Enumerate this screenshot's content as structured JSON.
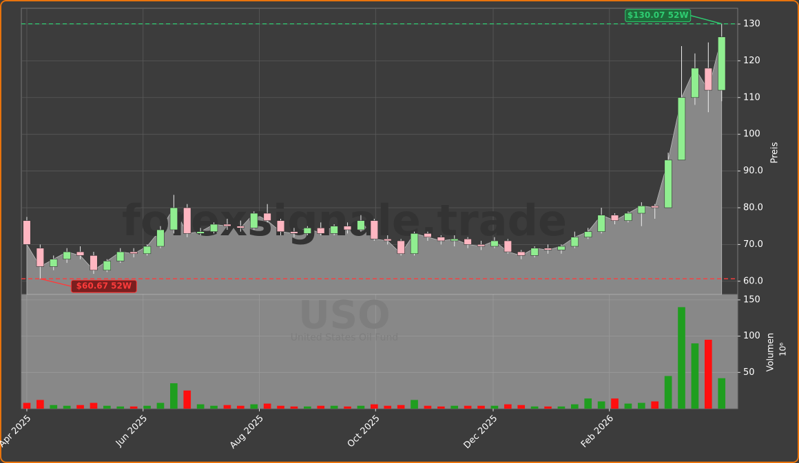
{
  "chart_data": {
    "type": "candlestick",
    "watermark": "forexsignale.trade",
    "symbol": "USO",
    "name": "United States Oil Fund",
    "ylabel": "Preis",
    "up_color": "#90ee90",
    "down_color": "#ffb6c1",
    "area_color": "#888888",
    "grid": true,
    "xlim": [
      -0.41,
      53.2
    ],
    "xticks": [
      {
        "value": 0,
        "label": "Apr 2025"
      },
      {
        "value": 8.7,
        "label": "Jun 2025"
      },
      {
        "value": 17.4,
        "label": "Aug 2025"
      },
      {
        "value": 26.1,
        "label": "Oct 2025"
      },
      {
        "value": 34.9,
        "label": "Dec 2025"
      },
      {
        "value": 43.6,
        "label": "Feb 2026"
      }
    ],
    "ylim": [
      56.4,
      134.3
    ],
    "yticks": [
      {
        "value": 60,
        "label": "60.0"
      },
      {
        "value": 70,
        "label": "70.0"
      },
      {
        "value": 80,
        "label": "80.0"
      },
      {
        "value": 90,
        "label": "90.0"
      },
      100,
      110,
      120,
      130
    ],
    "open": [
      76.5,
      69,
      64,
      66,
      68,
      67,
      63,
      65.5,
      68,
      67.5,
      69.5,
      74,
      80,
      73,
      73.5,
      75.5,
      75,
      74.5,
      78.5,
      76.5,
      73.5,
      73,
      74.5,
      73,
      75,
      74,
      76.5,
      71.5,
      71,
      67.5,
      73,
      72,
      71,
      71.5,
      70,
      69.5,
      71,
      68,
      67,
      69,
      68.5,
      69.5,
      72,
      73.5,
      78,
      76.5,
      78.5,
      80.5,
      80,
      93,
      110,
      118,
      112
    ],
    "high": [
      77.5,
      70,
      67,
      69,
      69.5,
      68,
      66,
      69,
      69,
      70,
      75,
      83.5,
      81,
      74.5,
      76,
      77,
      76.5,
      79,
      81,
      77,
      74.5,
      75,
      76,
      75.5,
      76,
      78,
      77,
      72.5,
      71.5,
      73.5,
      73.5,
      72.5,
      72.5,
      72,
      71,
      72,
      71.5,
      68.5,
      69.5,
      70,
      70,
      73.5,
      74.5,
      80,
      78.5,
      79,
      81.5,
      81,
      95,
      124,
      122,
      125,
      130.07
    ],
    "low": [
      70,
      60.67,
      63,
      65,
      66,
      62,
      62.5,
      65,
      66.5,
      67,
      69,
      73,
      72,
      72.5,
      73,
      74,
      73.5,
      74,
      76,
      72.5,
      72,
      72.5,
      72.5,
      72.5,
      73,
      73.5,
      71,
      70,
      67,
      67,
      71,
      70,
      69.5,
      69,
      68.5,
      69,
      67.5,
      66,
      66.5,
      67.5,
      67.5,
      69,
      71.5,
      73,
      75.5,
      76,
      75,
      77,
      80,
      93,
      108,
      106,
      109
    ],
    "close": [
      70,
      64,
      66,
      68,
      67,
      63,
      65.5,
      68,
      67.5,
      69.5,
      74,
      80,
      73,
      73.5,
      75.5,
      75,
      74.5,
      78.5,
      76.5,
      73.5,
      73,
      74.5,
      73,
      75,
      74,
      76.5,
      71.5,
      71,
      67.5,
      73,
      72,
      71,
      71.5,
      70,
      69.5,
      71,
      68,
      67,
      69,
      68.5,
      69.5,
      72,
      73.5,
      78,
      76.5,
      78.5,
      80.5,
      80,
      93,
      110,
      118,
      112,
      126.5
    ],
    "high_52w": {
      "value": 130.07,
      "label": "$130.07 52W",
      "color": "#2ecc71",
      "fill": "#1e6b3a"
    },
    "low_52w": {
      "value": 60.67,
      "label": "$60.67 52W",
      "color": "#ff3b3b",
      "fill": "#7a1f1f"
    },
    "volume": {
      "label": "Volumen",
      "unit": "10⁶",
      "up_color": "#1f9e1f",
      "down_color": "#ff0f0f",
      "ylim": [
        0,
        157.5
      ],
      "yticks": [
        50,
        100,
        150
      ],
      "values": [
        8,
        12,
        5,
        4,
        5,
        8,
        4,
        3,
        3,
        4,
        8,
        35,
        25,
        6,
        4,
        5,
        4,
        6,
        7,
        4,
        3,
        3,
        4,
        4,
        3,
        4,
        6,
        4,
        5,
        12,
        4,
        3,
        4,
        4,
        4,
        4,
        6,
        5,
        3,
        3,
        3,
        6,
        14,
        10,
        14,
        7,
        8,
        10,
        45,
        140,
        90,
        95,
        42
      ]
    }
  }
}
